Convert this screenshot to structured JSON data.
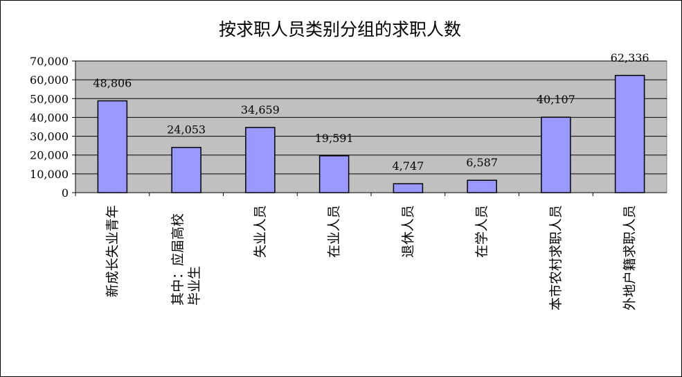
{
  "chart_data": {
    "type": "bar",
    "title": "按求职人员类别分组的求职人数",
    "xlabel": "",
    "ylabel": "",
    "ylim": [
      0,
      70000
    ],
    "yticks": [
      "0",
      "10,000",
      "20,000",
      "30,000",
      "40,000",
      "50,000",
      "60,000",
      "70,000"
    ],
    "grid": true,
    "legend": "none",
    "categories": [
      [
        "新成长失业青年"
      ],
      [
        "其中：应届高校",
        "毕业生"
      ],
      [
        "失业人员"
      ],
      [
        "在业人员"
      ],
      [
        "退休人员"
      ],
      [
        "在学人员"
      ],
      [
        "本市农村求职人员"
      ],
      [
        "外地户籍求职人员"
      ]
    ],
    "values": [
      48806,
      24053,
      34659,
      19591,
      4747,
      6587,
      40107,
      62336
    ],
    "data_labels": [
      "48,806",
      "24,053",
      "34,659",
      "19,591",
      "4,747",
      "6,587",
      "40,107",
      "62,336"
    ],
    "colors": {
      "bar": "#9999ff",
      "plot_bg": "#c0c0c0",
      "grid": "#000000"
    }
  }
}
